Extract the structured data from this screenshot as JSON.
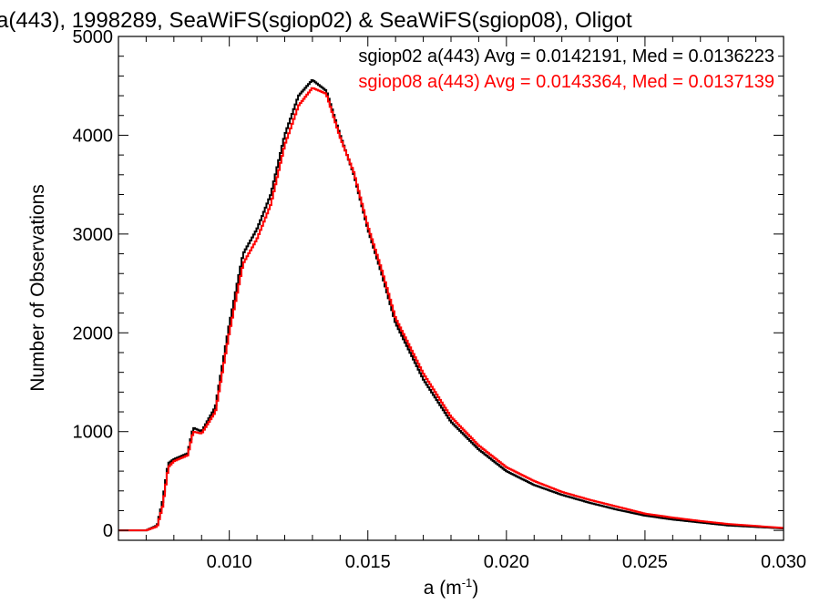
{
  "chart_data": {
    "type": "line",
    "step": true,
    "title": "a(443), 1998289, SeaWiFS(sgiop02) & SeaWiFS(sgiop08), Oligot",
    "xlabel": "a (m",
    "xlabel_sup": "-1",
    "xlabel_close": ")",
    "ylabel": "Number of Observations",
    "xlim": [
      0.006,
      0.03
    ],
    "ylim": [
      -100,
      5000
    ],
    "x_ticks": [
      0.01,
      0.015,
      0.02,
      0.025,
      0.03
    ],
    "x_tick_labels": [
      "0.010",
      "0.015",
      "0.020",
      "0.025",
      "0.030"
    ],
    "y_ticks": [
      0,
      1000,
      2000,
      3000,
      4000,
      5000
    ],
    "y_tick_labels": [
      "0",
      "1000",
      "2000",
      "3000",
      "4000",
      "5000"
    ],
    "grid": false,
    "legend_placement": "top-right",
    "series": [
      {
        "name": "sgiop02",
        "legend": "sgiop02 a(443) Avg = 0.0142191, Med = 0.0136223",
        "color": "#000000",
        "x": [
          0.007,
          0.0074,
          0.0076,
          0.0078,
          0.008,
          0.0085,
          0.0087,
          0.009,
          0.0095,
          0.01,
          0.0105,
          0.011,
          0.0115,
          0.012,
          0.0125,
          0.013,
          0.0135,
          0.014,
          0.0145,
          0.015,
          0.0155,
          0.016,
          0.017,
          0.018,
          0.019,
          0.02,
          0.021,
          0.022,
          0.023,
          0.024,
          0.025,
          0.026,
          0.027,
          0.028,
          0.029,
          0.03
        ],
        "y": [
          0,
          50,
          300,
          680,
          720,
          780,
          1040,
          1000,
          1250,
          2080,
          2800,
          3050,
          3400,
          4000,
          4400,
          4560,
          4450,
          4000,
          3600,
          3050,
          2600,
          2100,
          1530,
          1100,
          820,
          600,
          460,
          360,
          280,
          210,
          150,
          110,
          80,
          50,
          35,
          20
        ]
      },
      {
        "name": "sgiop08",
        "legend": "sgiop08 a(443) Avg = 0.0143364, Med = 0.0137139",
        "color": "#ff0000",
        "x": [
          0.007,
          0.0074,
          0.0076,
          0.0078,
          0.008,
          0.0085,
          0.0087,
          0.009,
          0.0095,
          0.01,
          0.0105,
          0.011,
          0.0115,
          0.012,
          0.0125,
          0.013,
          0.0135,
          0.014,
          0.0145,
          0.015,
          0.0155,
          0.016,
          0.017,
          0.018,
          0.019,
          0.02,
          0.021,
          0.022,
          0.023,
          0.024,
          0.025,
          0.026,
          0.027,
          0.028,
          0.029,
          0.03
        ],
        "y": [
          0,
          40,
          250,
          640,
          700,
          760,
          1000,
          980,
          1200,
          2000,
          2700,
          2950,
          3300,
          3900,
          4300,
          4480,
          4420,
          3980,
          3620,
          3080,
          2640,
          2150,
          1590,
          1150,
          860,
          640,
          500,
          390,
          310,
          240,
          170,
          130,
          95,
          65,
          45,
          25
        ]
      }
    ]
  }
}
